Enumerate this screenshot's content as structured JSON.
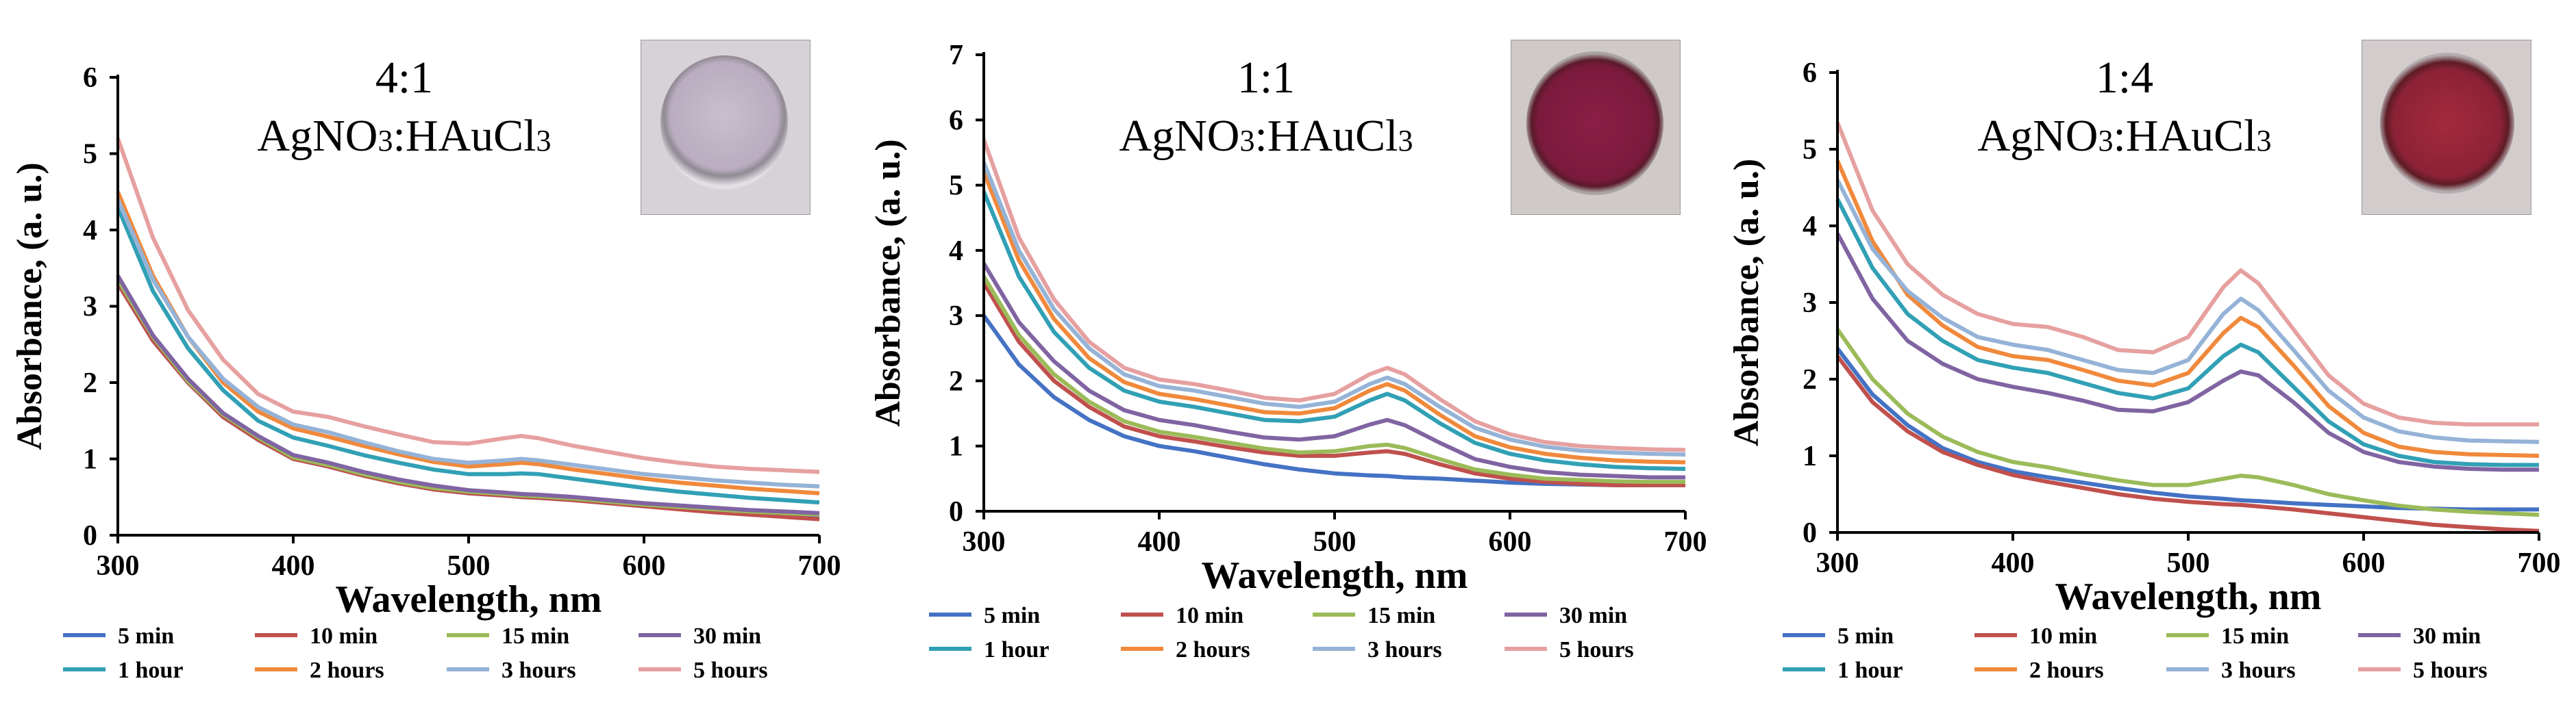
{
  "chart_data": [
    {
      "type": "line",
      "title": "4:1",
      "subtitle": "AgNO3:HAuCl3",
      "xlabel": "Wavelength, nm",
      "ylabel": "Absorbance, (a. u.)",
      "xlim": [
        300,
        700
      ],
      "ylim": [
        0,
        6
      ],
      "xticks": [
        300,
        400,
        500,
        600,
        700
      ],
      "yticks": [
        0,
        1,
        2,
        3,
        4,
        5,
        6
      ],
      "legend_position": "bottom",
      "inset_photo": "faint-violet",
      "x": [
        300,
        320,
        340,
        360,
        380,
        400,
        420,
        440,
        460,
        480,
        500,
        520,
        530,
        540,
        560,
        580,
        600,
        620,
        640,
        660,
        680,
        700
      ],
      "series": [
        {
          "name": "5 min",
          "color": "#4472C4",
          "values": [
            3.3,
            2.55,
            2.0,
            1.55,
            1.25,
            1.0,
            0.9,
            0.78,
            0.68,
            0.6,
            0.55,
            0.52,
            0.5,
            0.49,
            0.46,
            0.42,
            0.38,
            0.35,
            0.32,
            0.3,
            0.27,
            0.25
          ]
        },
        {
          "name": "10 min",
          "color": "#C0504D",
          "values": [
            3.3,
            2.55,
            2.0,
            1.55,
            1.25,
            1.0,
            0.9,
            0.78,
            0.68,
            0.6,
            0.55,
            0.52,
            0.5,
            0.49,
            0.46,
            0.42,
            0.38,
            0.34,
            0.3,
            0.27,
            0.24,
            0.21
          ]
        },
        {
          "name": "15 min",
          "color": "#9BBB59",
          "values": [
            3.35,
            2.6,
            2.02,
            1.58,
            1.28,
            1.02,
            0.92,
            0.8,
            0.7,
            0.62,
            0.57,
            0.54,
            0.52,
            0.51,
            0.48,
            0.44,
            0.4,
            0.37,
            0.34,
            0.31,
            0.29,
            0.27
          ]
        },
        {
          "name": "30 min",
          "color": "#8064A2",
          "values": [
            3.4,
            2.62,
            2.05,
            1.6,
            1.3,
            1.05,
            0.95,
            0.83,
            0.73,
            0.65,
            0.59,
            0.56,
            0.54,
            0.53,
            0.5,
            0.46,
            0.42,
            0.39,
            0.36,
            0.33,
            0.31,
            0.29
          ]
        },
        {
          "name": "1 hour",
          "color": "#31A0B5",
          "values": [
            4.3,
            3.2,
            2.45,
            1.9,
            1.5,
            1.28,
            1.17,
            1.05,
            0.95,
            0.86,
            0.8,
            0.8,
            0.81,
            0.8,
            0.74,
            0.68,
            0.62,
            0.57,
            0.53,
            0.49,
            0.46,
            0.43
          ]
        },
        {
          "name": "2 hours",
          "color": "#F0893B",
          "values": [
            4.5,
            3.4,
            2.6,
            2.0,
            1.62,
            1.4,
            1.29,
            1.17,
            1.06,
            0.96,
            0.9,
            0.93,
            0.95,
            0.93,
            0.86,
            0.8,
            0.74,
            0.69,
            0.65,
            0.61,
            0.58,
            0.55
          ]
        },
        {
          "name": "3 hours",
          "color": "#95B3D7",
          "values": [
            4.4,
            3.35,
            2.6,
            2.05,
            1.68,
            1.45,
            1.35,
            1.22,
            1.1,
            1.0,
            0.95,
            0.98,
            1.0,
            0.98,
            0.92,
            0.86,
            0.8,
            0.76,
            0.72,
            0.69,
            0.66,
            0.64
          ]
        },
        {
          "name": "5 hours",
          "color": "#E6A0A0",
          "values": [
            5.2,
            3.9,
            2.95,
            2.3,
            1.85,
            1.62,
            1.55,
            1.43,
            1.32,
            1.22,
            1.2,
            1.27,
            1.3,
            1.27,
            1.17,
            1.09,
            1.01,
            0.95,
            0.9,
            0.87,
            0.85,
            0.83
          ]
        }
      ]
    },
    {
      "type": "line",
      "title": "1:1",
      "subtitle": "AgNO3:HAuCl3",
      "xlabel": "Wavelength, nm",
      "ylabel": "Absorbance, (a. u.)",
      "xlim": [
        300,
        700
      ],
      "ylim": [
        0,
        7
      ],
      "xticks": [
        300,
        400,
        500,
        600,
        700
      ],
      "yticks": [
        0,
        1,
        2,
        3,
        4,
        5,
        6,
        7
      ],
      "legend_position": "bottom",
      "inset_photo": "deep-magenta",
      "x": [
        300,
        320,
        340,
        360,
        380,
        400,
        420,
        440,
        460,
        480,
        500,
        520,
        530,
        540,
        560,
        580,
        600,
        620,
        640,
        660,
        680,
        700
      ],
      "series": [
        {
          "name": "5 min",
          "color": "#4472C4",
          "values": [
            3.0,
            2.25,
            1.75,
            1.4,
            1.15,
            1.0,
            0.92,
            0.82,
            0.72,
            0.64,
            0.58,
            0.55,
            0.54,
            0.52,
            0.5,
            0.47,
            0.44,
            0.42,
            0.41,
            0.4,
            0.4,
            0.4
          ]
        },
        {
          "name": "10 min",
          "color": "#C0504D",
          "values": [
            3.5,
            2.6,
            2.0,
            1.6,
            1.3,
            1.15,
            1.07,
            0.98,
            0.9,
            0.85,
            0.85,
            0.9,
            0.92,
            0.88,
            0.72,
            0.58,
            0.5,
            0.45,
            0.42,
            0.4,
            0.4,
            0.4
          ]
        },
        {
          "name": "15 min",
          "color": "#9BBB59",
          "values": [
            3.6,
            2.7,
            2.1,
            1.68,
            1.38,
            1.22,
            1.14,
            1.05,
            0.96,
            0.9,
            0.92,
            1.0,
            1.02,
            0.97,
            0.8,
            0.64,
            0.56,
            0.5,
            0.48,
            0.46,
            0.45,
            0.45
          ]
        },
        {
          "name": "30 min",
          "color": "#8064A2",
          "values": [
            3.8,
            2.9,
            2.3,
            1.85,
            1.55,
            1.4,
            1.32,
            1.22,
            1.13,
            1.1,
            1.15,
            1.33,
            1.4,
            1.32,
            1.05,
            0.8,
            0.68,
            0.6,
            0.56,
            0.54,
            0.52,
            0.52
          ]
        },
        {
          "name": "1 hour",
          "color": "#31A0B5",
          "values": [
            4.9,
            3.6,
            2.75,
            2.2,
            1.85,
            1.68,
            1.6,
            1.5,
            1.4,
            1.38,
            1.45,
            1.7,
            1.8,
            1.7,
            1.35,
            1.05,
            0.88,
            0.78,
            0.72,
            0.68,
            0.66,
            0.65
          ]
        },
        {
          "name": "2 hours",
          "color": "#F0893B",
          "values": [
            5.2,
            3.85,
            2.95,
            2.35,
            1.98,
            1.8,
            1.72,
            1.62,
            1.52,
            1.5,
            1.58,
            1.85,
            1.95,
            1.85,
            1.48,
            1.15,
            0.98,
            0.88,
            0.82,
            0.78,
            0.76,
            0.75
          ]
        },
        {
          "name": "3 hours",
          "color": "#95B3D7",
          "values": [
            5.35,
            4.0,
            3.1,
            2.5,
            2.1,
            1.92,
            1.85,
            1.75,
            1.65,
            1.6,
            1.68,
            1.95,
            2.05,
            1.95,
            1.6,
            1.28,
            1.1,
            0.99,
            0.93,
            0.9,
            0.88,
            0.87
          ]
        },
        {
          "name": "5 hours",
          "color": "#E6A0A0",
          "values": [
            5.7,
            4.2,
            3.25,
            2.6,
            2.2,
            2.02,
            1.95,
            1.85,
            1.74,
            1.7,
            1.8,
            2.1,
            2.2,
            2.1,
            1.72,
            1.38,
            1.18,
            1.06,
            1.0,
            0.97,
            0.95,
            0.94
          ]
        }
      ]
    },
    {
      "type": "line",
      "title": "1:4",
      "subtitle": "AgNO3:HAuCl3",
      "xlabel": "Wavelength, nm",
      "ylabel": "Absorbance, (a. u.)",
      "xlim": [
        300,
        700
      ],
      "ylim": [
        0,
        6
      ],
      "xticks": [
        300,
        400,
        500,
        600,
        700
      ],
      "yticks": [
        0,
        1,
        2,
        3,
        4,
        5,
        6
      ],
      "legend_position": "bottom",
      "inset_photo": "red-magenta",
      "x": [
        300,
        320,
        340,
        360,
        380,
        400,
        420,
        440,
        460,
        480,
        500,
        520,
        530,
        540,
        560,
        580,
        600,
        620,
        640,
        660,
        680,
        700
      ],
      "series": [
        {
          "name": "5 min",
          "color": "#4472C4",
          "values": [
            2.4,
            1.8,
            1.4,
            1.1,
            0.92,
            0.8,
            0.72,
            0.65,
            0.58,
            0.52,
            0.47,
            0.44,
            0.42,
            0.41,
            0.38,
            0.36,
            0.34,
            0.32,
            0.31,
            0.3,
            0.3,
            0.3
          ]
        },
        {
          "name": "10 min",
          "color": "#C0504D",
          "values": [
            2.3,
            1.7,
            1.32,
            1.05,
            0.88,
            0.75,
            0.66,
            0.58,
            0.5,
            0.44,
            0.4,
            0.37,
            0.36,
            0.34,
            0.3,
            0.25,
            0.2,
            0.15,
            0.1,
            0.07,
            0.04,
            0.02
          ]
        },
        {
          "name": "15 min",
          "color": "#9BBB59",
          "values": [
            2.65,
            2.0,
            1.55,
            1.25,
            1.05,
            0.92,
            0.85,
            0.76,
            0.68,
            0.62,
            0.62,
            0.7,
            0.74,
            0.72,
            0.62,
            0.5,
            0.42,
            0.35,
            0.3,
            0.27,
            0.25,
            0.23
          ]
        },
        {
          "name": "30 min",
          "color": "#8064A2",
          "values": [
            3.9,
            3.05,
            2.5,
            2.2,
            2.0,
            1.9,
            1.82,
            1.72,
            1.6,
            1.58,
            1.7,
            1.98,
            2.1,
            2.05,
            1.7,
            1.3,
            1.05,
            0.92,
            0.86,
            0.83,
            0.82,
            0.82
          ]
        },
        {
          "name": "1 hour",
          "color": "#31A0B5",
          "values": [
            4.35,
            3.45,
            2.85,
            2.5,
            2.25,
            2.15,
            2.08,
            1.95,
            1.82,
            1.75,
            1.88,
            2.3,
            2.45,
            2.35,
            1.9,
            1.45,
            1.15,
            1.0,
            0.92,
            0.89,
            0.88,
            0.88
          ]
        },
        {
          "name": "2 hours",
          "color": "#F0893B",
          "values": [
            4.85,
            3.8,
            3.1,
            2.7,
            2.42,
            2.3,
            2.25,
            2.12,
            1.98,
            1.92,
            2.08,
            2.6,
            2.8,
            2.68,
            2.18,
            1.65,
            1.3,
            1.12,
            1.05,
            1.02,
            1.01,
            1.0
          ]
        },
        {
          "name": "3 hours",
          "color": "#95B3D7",
          "values": [
            4.6,
            3.7,
            3.15,
            2.8,
            2.55,
            2.45,
            2.38,
            2.25,
            2.12,
            2.08,
            2.25,
            2.85,
            3.05,
            2.9,
            2.38,
            1.85,
            1.5,
            1.32,
            1.24,
            1.2,
            1.19,
            1.18
          ]
        },
        {
          "name": "5 hours",
          "color": "#E6A0A0",
          "values": [
            5.35,
            4.2,
            3.5,
            3.1,
            2.85,
            2.72,
            2.68,
            2.55,
            2.38,
            2.35,
            2.55,
            3.2,
            3.42,
            3.25,
            2.65,
            2.05,
            1.68,
            1.5,
            1.43,
            1.41,
            1.41,
            1.41
          ]
        }
      ]
    }
  ]
}
